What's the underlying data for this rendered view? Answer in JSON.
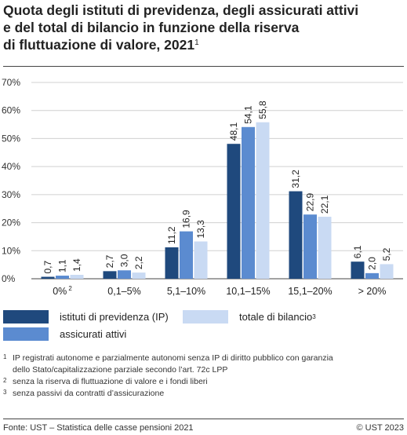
{
  "title": {
    "line1": "Quota degli istituti di previdenza, degli assicurati attivi",
    "line2": "e del total di bilancio in funzione della riserva",
    "line3": "di fluttuazione di valore, 2021",
    "footnote_ref": "1"
  },
  "chart_data": {
    "type": "bar",
    "categories": [
      "0%",
      "0,1–5%",
      "5,1–10%",
      "10,1–15%",
      "15,1–20%",
      "> 20%"
    ],
    "category_footnotes": [
      "2",
      "",
      "",
      "",
      "",
      ""
    ],
    "series": [
      {
        "name": "istituti di previdenza (IP)",
        "values": [
          0.7,
          2.7,
          11.2,
          48.1,
          31.2,
          6.1
        ],
        "labels": [
          "0,7",
          "2,7",
          "11,2",
          "48,1",
          "31,2",
          "6,1"
        ],
        "color": "#1f497d"
      },
      {
        "name": "assicurati attivi",
        "values": [
          1.1,
          3.0,
          16.9,
          54.1,
          22.9,
          2.0
        ],
        "labels": [
          "1,1",
          "3,0",
          "16,9",
          "54,1",
          "22,9",
          "2,0"
        ],
        "color": "#5b8bd0"
      },
      {
        "name": "totale di bilancio",
        "footnote": "3",
        "values": [
          1.4,
          2.2,
          13.3,
          55.8,
          22.1,
          5.2
        ],
        "labels": [
          "1,4",
          "2,2",
          "13,3",
          "55,8",
          "22,1",
          "5,2"
        ],
        "color": "#c9daf3"
      }
    ],
    "ylim": [
      0,
      70
    ],
    "yticks": [
      "0%",
      "10%",
      "20%",
      "30%",
      "40%",
      "50%",
      "60%",
      "70%"
    ],
    "grid": true,
    "legend": "bottom"
  },
  "notes": [
    {
      "num": "1",
      "text": "IP registrati autonome e parzialmente autonomi senza IP di diritto pubblico con garanzia"
    },
    {
      "num": "",
      "text": "dello Stato/capitalizzazione parziale secondo l’art. 72c LPP"
    },
    {
      "num": "2",
      "text": "senza la riserva di fluttuazione di valore e i fondi liberi"
    },
    {
      "num": "3",
      "text": "senza passivi da contratti d’assicurazione"
    }
  ],
  "footer": {
    "source": "Fonte: UST – Statistica delle casse pensioni 2021",
    "copyright": "© UST 2023"
  }
}
